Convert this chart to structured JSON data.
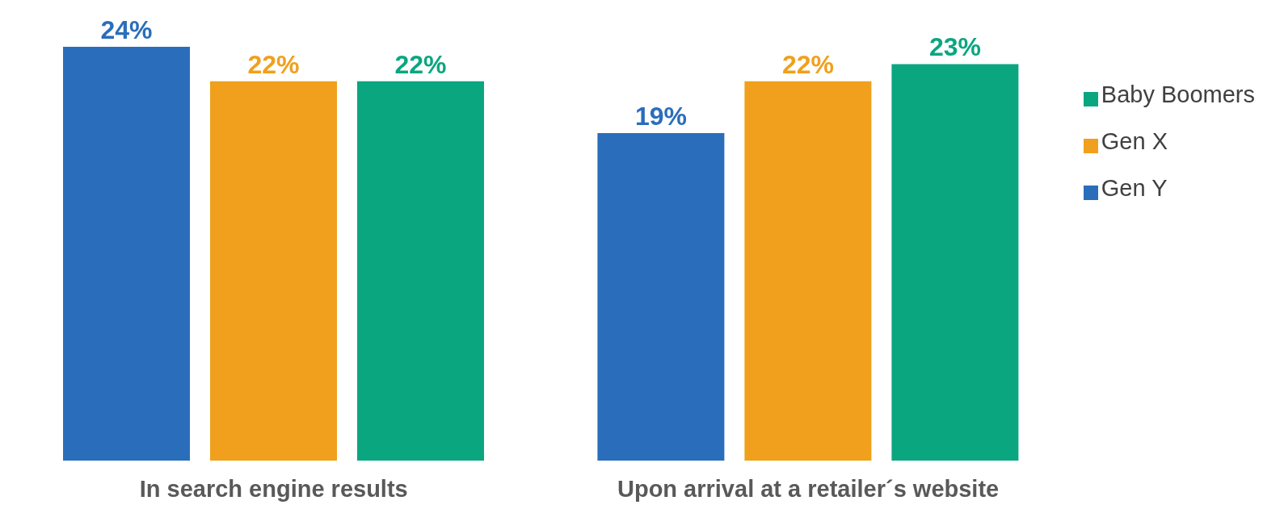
{
  "chart_data": {
    "type": "bar",
    "categories": [
      "In search engine results",
      "Upon arrival at a retailer´s website"
    ],
    "series": [
      {
        "name": "Gen Y",
        "color": "#2a6ebb",
        "values": [
          24,
          19
        ],
        "value_labels": [
          "24%",
          "19%"
        ]
      },
      {
        "name": "Gen X",
        "color": "#f0a01c",
        "values": [
          22,
          22
        ],
        "value_labels": [
          "22%",
          "22%"
        ]
      },
      {
        "name": "Baby Boomers",
        "color": "#0aa680",
        "values": [
          22,
          23
        ],
        "value_labels": [
          "22%",
          "23%"
        ]
      }
    ],
    "legend": "right",
    "grid": false,
    "tick_labels": "x"
  }
}
